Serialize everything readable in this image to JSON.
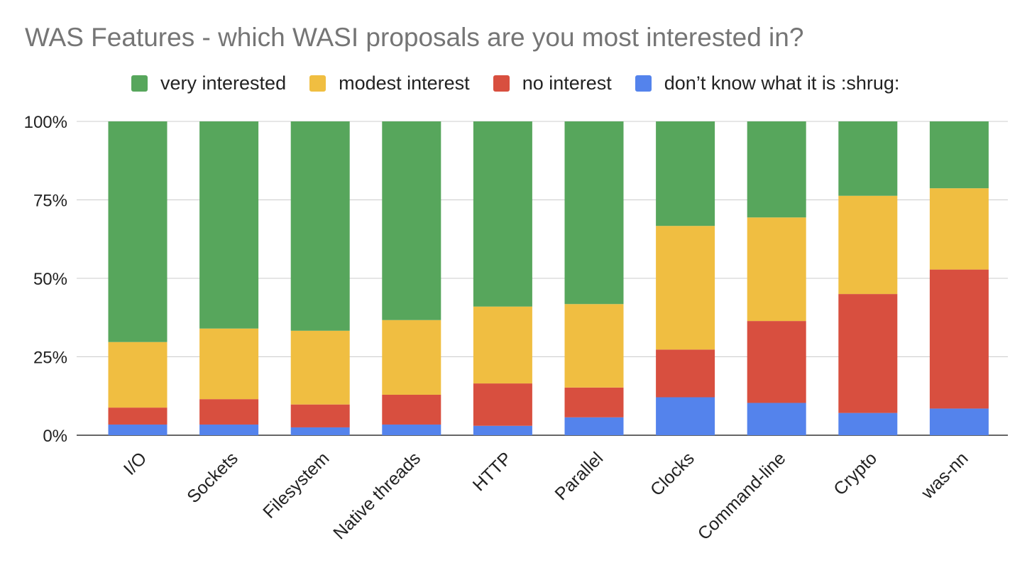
{
  "chart_data": {
    "type": "bar",
    "stacked": true,
    "normalized": true,
    "title": "WAS Features - which WASI proposals are you most interested in?",
    "xlabel": "",
    "ylabel": "",
    "ylim": [
      0,
      100
    ],
    "yticks": [
      "0%",
      "25%",
      "50%",
      "75%",
      "100%"
    ],
    "grid": true,
    "legend_position": "top",
    "categories": [
      "I/O",
      "Sockets",
      "Filesystem",
      "Native threads",
      "HTTP",
      "Parallel",
      "Clocks",
      "Command-line",
      "Crypto",
      "was-nn"
    ],
    "series": [
      {
        "name": "don’t know what it is :shrug:",
        "color": "#5483ec",
        "values": [
          3.4,
          3.4,
          2.5,
          3.4,
          3.0,
          5.7,
          12.1,
          10.3,
          7.1,
          8.5
        ]
      },
      {
        "name": "no interest",
        "color": "#d84f3f",
        "values": [
          5.4,
          8.1,
          7.3,
          9.5,
          13.5,
          9.5,
          15.2,
          26.1,
          37.9,
          44.3
        ]
      },
      {
        "name": "modest interest",
        "color": "#f0be41",
        "values": [
          20.9,
          22.5,
          23.5,
          23.8,
          24.5,
          26.6,
          39.4,
          33.0,
          31.3,
          25.9
        ]
      },
      {
        "name": "very interested",
        "color": "#57a65c",
        "values": [
          70.3,
          66.0,
          66.7,
          63.3,
          59.0,
          58.2,
          33.3,
          30.6,
          23.7,
          21.3
        ]
      }
    ]
  }
}
